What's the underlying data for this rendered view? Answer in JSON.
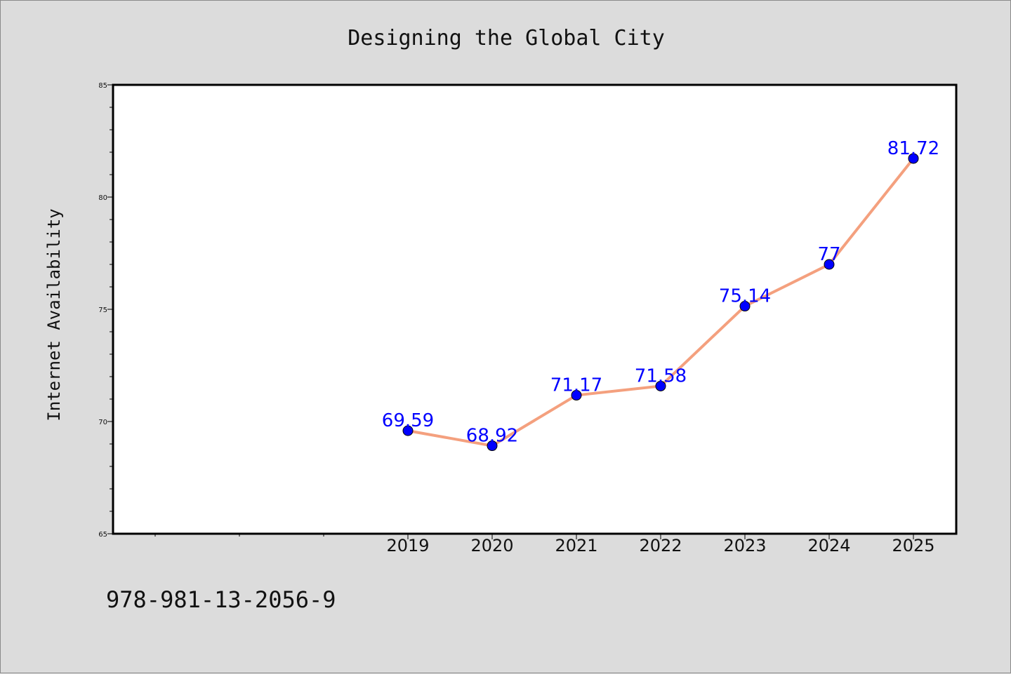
{
  "footer": {
    "code": "978-981-13-2056-9"
  },
  "colors": {
    "background": "#dcdcdc",
    "plot_area": "#ffffff",
    "line": "#f4a07e",
    "marker": "#0000ff",
    "data_label": "#0000ff"
  },
  "chart_data": {
    "type": "line",
    "title": "Designing the Global City",
    "xlabel": "",
    "ylabel": "Internet Availability",
    "x": [
      "2019",
      "2020",
      "2021",
      "2022",
      "2023",
      "2024",
      "2025"
    ],
    "x_axis_slots_before_data": 3,
    "series": [
      {
        "values": [
          69.59,
          68.92,
          71.17,
          71.58,
          75.14,
          77,
          81.72
        ],
        "labels": [
          "69.59",
          "68.92",
          "71.17",
          "71.58",
          "75.14",
          "77",
          "81.72"
        ]
      }
    ],
    "ylim": [
      65,
      85
    ],
    "yticks": [
      65,
      70,
      75,
      80,
      85
    ],
    "grid": false,
    "legend": "none"
  }
}
